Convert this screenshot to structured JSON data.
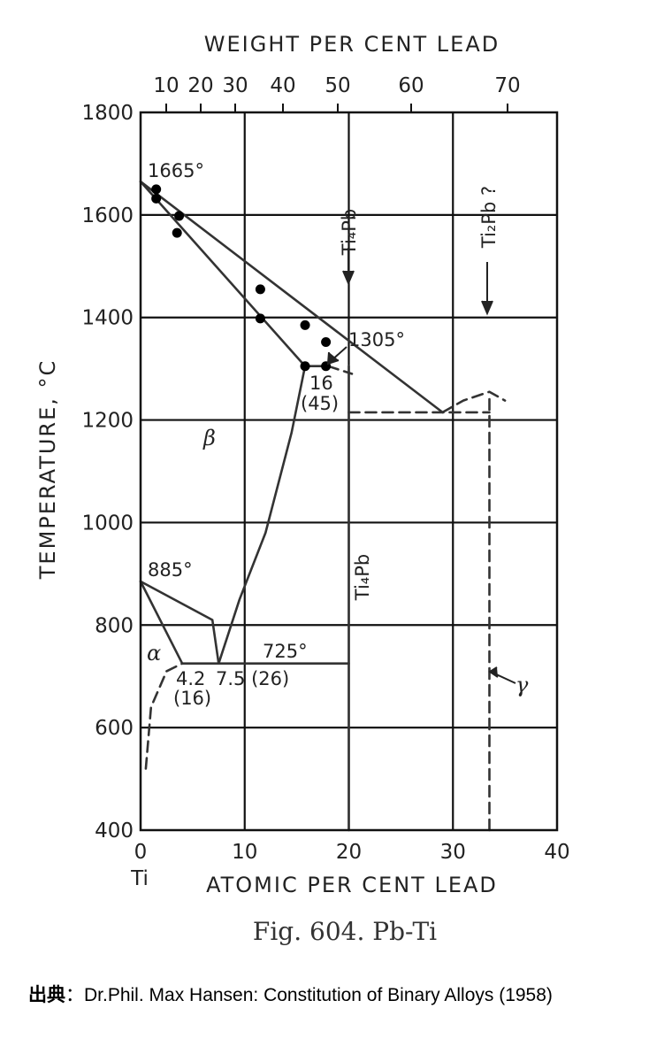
{
  "chart_data": {
    "type": "line",
    "title": "",
    "top_axis": {
      "label": "WEIGHT PER CENT LEAD",
      "ticks": [
        "10",
        "20",
        "30",
        "40",
        "50",
        "60",
        "70"
      ]
    },
    "xlabel": "ATOMIC PER CENT LEAD",
    "x_ticks": [
      "0",
      "10",
      "20",
      "30",
      "40"
    ],
    "x_origin_label": "Ti",
    "xlim": [
      0,
      40
    ],
    "ylabel": "TEMPERATURE, °C",
    "y_ticks": [
      "400",
      "600",
      "800",
      "1000",
      "1200",
      "1400",
      "1600",
      "1800"
    ],
    "ylim": [
      400,
      1800
    ],
    "grid": true,
    "series": [
      {
        "style": "solid",
        "points": [
          [
            0,
            1665
          ],
          [
            29,
            1215
          ]
        ]
      },
      {
        "style": "dashed",
        "points": [
          [
            29,
            1215
          ],
          [
            31,
            1238
          ],
          [
            33.5,
            1255
          ],
          [
            35,
            1238
          ]
        ]
      },
      {
        "style": "solid",
        "points": [
          [
            0,
            1665
          ],
          [
            15.8,
            1305
          ],
          [
            18,
            1305
          ]
        ]
      },
      {
        "style": "solid",
        "points": [
          [
            7.5,
            725
          ],
          [
            9.5,
            850
          ],
          [
            12,
            980
          ],
          [
            14.5,
            1175
          ],
          [
            15.8,
            1305
          ]
        ]
      },
      {
        "style": "solid",
        "points": [
          [
            0,
            885
          ],
          [
            6.9,
            810
          ],
          [
            7.5,
            725
          ]
        ]
      },
      {
        "style": "solid",
        "points": [
          [
            0,
            885
          ],
          [
            4,
            725
          ]
        ]
      },
      {
        "style": "solid",
        "points": [
          [
            4,
            725
          ],
          [
            20,
            725
          ]
        ]
      },
      {
        "style": "solid",
        "points": [
          [
            20,
            400
          ],
          [
            20,
            1305
          ]
        ]
      },
      {
        "style": "dashed",
        "points": [
          [
            20,
            1215
          ],
          [
            33.5,
            1215
          ]
        ]
      },
      {
        "style": "dashed",
        "points": [
          [
            33.5,
            400
          ],
          [
            33.5,
            1250
          ]
        ]
      },
      {
        "style": "dashed",
        "points": [
          [
            0.5,
            520
          ],
          [
            1,
            640
          ],
          [
            2.5,
            710
          ],
          [
            4,
            725
          ]
        ]
      },
      {
        "style": "dashed",
        "points": [
          [
            18,
            1305
          ],
          [
            20.3,
            1290
          ]
        ]
      }
    ],
    "points": [
      [
        1.5,
        1650
      ],
      [
        1.5,
        1632
      ],
      [
        3.7,
        1598
      ],
      [
        3.5,
        1565
      ],
      [
        11.5,
        1455
      ],
      [
        11.5,
        1398
      ],
      [
        15.8,
        1385
      ],
      [
        17.8,
        1352
      ],
      [
        15.8,
        1305
      ],
      [
        17.8,
        1305
      ]
    ],
    "annotations": [
      {
        "id": "melt-ti",
        "text": "1665°"
      },
      {
        "id": "peritectic",
        "text": "1305°"
      },
      {
        "id": "peri-comp",
        "text": "16"
      },
      {
        "id": "peri-comp-wt",
        "text": "(45)"
      },
      {
        "id": "alpha-beta",
        "text": "885°"
      },
      {
        "id": "eutectoid",
        "text": "725°"
      },
      {
        "id": "eut-alpha",
        "text": "4.2"
      },
      {
        "id": "eut-alpha-wt",
        "text": "(16)"
      },
      {
        "id": "eut-beta",
        "text": "7.5 (26)"
      },
      {
        "id": "phase-beta",
        "text": "β"
      },
      {
        "id": "phase-alpha",
        "text": "α"
      },
      {
        "id": "phase-gamma",
        "text": "γ"
      },
      {
        "id": "comp-ti4pb-upper",
        "text": "Ti₄Pb"
      },
      {
        "id": "comp-ti4pb-lower",
        "text": "Ti₄Pb"
      },
      {
        "id": "comp-ti2pb",
        "text": "Ti₂Pb ?"
      }
    ]
  },
  "figure_caption": "Fig. 604. Pb-Ti",
  "source": {
    "label": "出典",
    "separator": "：",
    "text": "Dr.Phil. Max Hansen: Constitution of Binary Alloys (1958)"
  }
}
